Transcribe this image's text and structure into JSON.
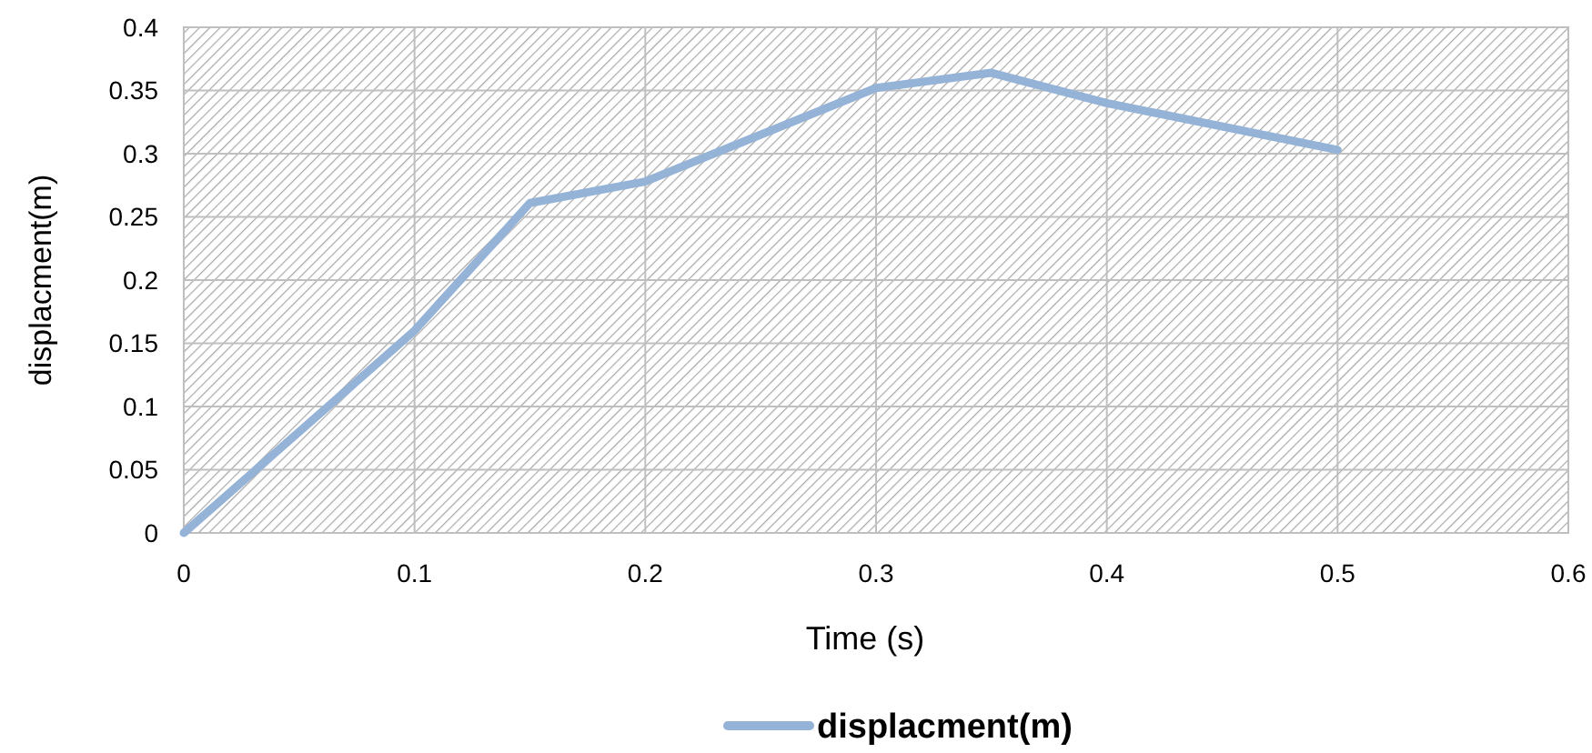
{
  "chart_data": {
    "type": "line",
    "xlabel": "Time (s)",
    "ylabel": "displacment(m)",
    "x": [
      0,
      0.1,
      0.15,
      0.2,
      0.3,
      0.35,
      0.4,
      0.5
    ],
    "series": [
      {
        "name": "displacment(m)",
        "color": "#95b3d7",
        "values": [
          0,
          0.16,
          0.261,
          0.278,
          0.352,
          0.364,
          0.34,
          0.303
        ]
      }
    ],
    "xlim": [
      0,
      0.6
    ],
    "xticks": [
      0,
      0.1,
      0.2,
      0.3,
      0.4,
      0.5,
      0.6
    ],
    "ylim": [
      0,
      0.4
    ],
    "yticks": [
      0,
      0.05,
      0.1,
      0.15,
      0.2,
      0.25,
      0.3,
      0.35,
      0.4
    ],
    "grid": true,
    "legend": "bottom",
    "marker": "none",
    "line_style": "solid"
  }
}
